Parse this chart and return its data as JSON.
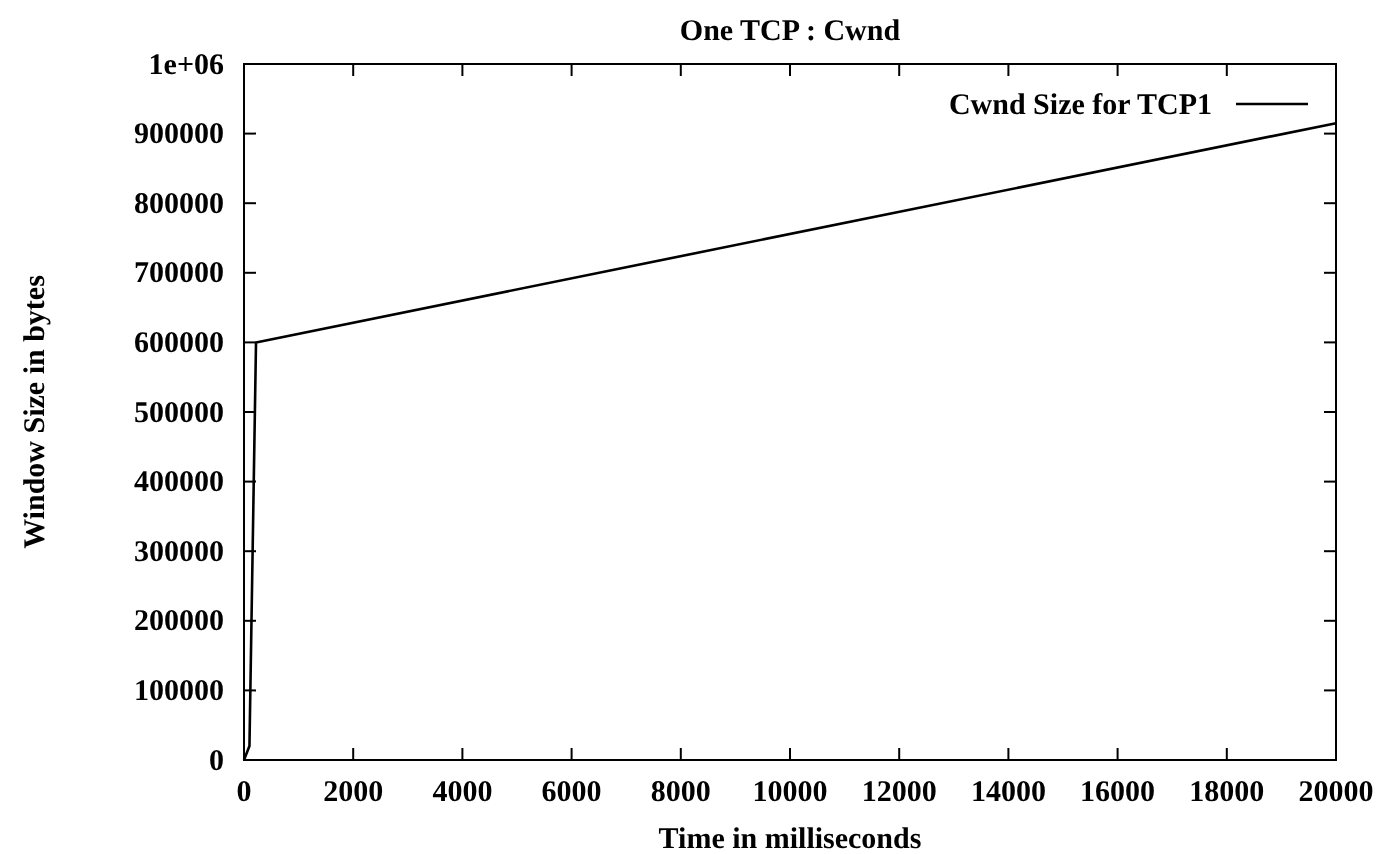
{
  "chart_data": {
    "type": "line",
    "title": "One TCP : Cwnd",
    "xlabel": "Time in milliseconds",
    "ylabel": "Window Size in bytes",
    "series": [
      {
        "name": "Cwnd Size for TCP1",
        "color": "#000000",
        "x": [
          0,
          100,
          220,
          20000
        ],
        "values": [
          0,
          20000,
          600000,
          915000
        ]
      }
    ],
    "xlim": [
      0,
      20000
    ],
    "xticks": [
      0,
      2000,
      4000,
      6000,
      8000,
      10000,
      12000,
      14000,
      16000,
      18000,
      20000
    ],
    "ylim": [
      0,
      1000000
    ],
    "yticks": [
      0,
      100000,
      200000,
      300000,
      400000,
      500000,
      600000,
      700000,
      800000,
      {
        "value": 900000,
        "label": "900000"
      },
      {
        "value": 1000000,
        "label": "1e+06"
      }
    ],
    "legend": "top right",
    "grid": false,
    "marker": "none",
    "line_style": "solid"
  }
}
